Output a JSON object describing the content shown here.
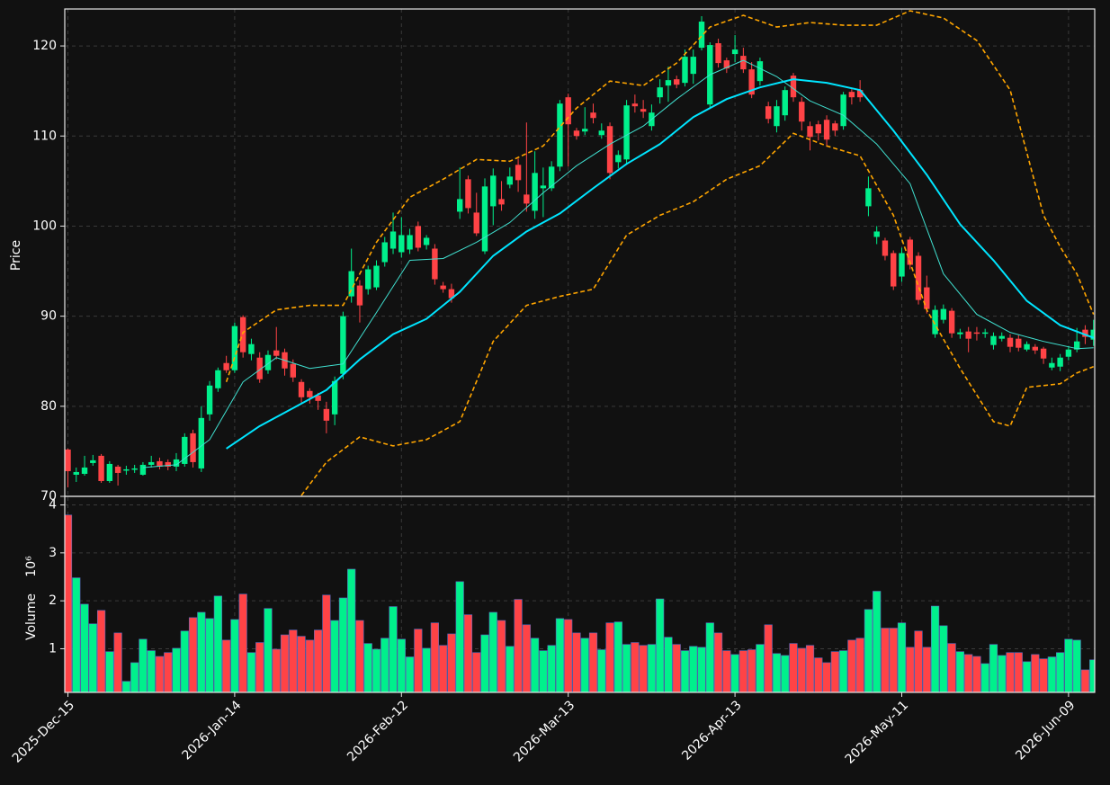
{
  "chart_data": {
    "type": "candlestick",
    "ylabel": "Price",
    "volume_label": "Volume",
    "volume_exponent": "10⁶",
    "up_color": "#00f08c",
    "down_color": "#ff4346",
    "grid": true,
    "ylim": [
      70,
      124.1
    ],
    "yticks": [
      70,
      80,
      90,
      100,
      110,
      120
    ],
    "volume_ylim": [
      0.09,
      4.16
    ],
    "volume_yticks": [
      1,
      2,
      3,
      4
    ],
    "categories": [
      "2025-Dec-15",
      null,
      null,
      null,
      null,
      null,
      null,
      null,
      null,
      null,
      null,
      null,
      null,
      null,
      null,
      null,
      null,
      null,
      null,
      null,
      "2026-Jan-14",
      null,
      null,
      null,
      null,
      null,
      null,
      null,
      null,
      null,
      null,
      null,
      null,
      null,
      null,
      null,
      null,
      null,
      null,
      null,
      "2026-Feb-12",
      null,
      null,
      null,
      null,
      null,
      null,
      null,
      null,
      null,
      null,
      null,
      null,
      null,
      null,
      null,
      null,
      null,
      null,
      null,
      "2026-Mar-13",
      null,
      null,
      null,
      null,
      null,
      null,
      null,
      null,
      null,
      null,
      null,
      null,
      null,
      null,
      null,
      null,
      null,
      null,
      null,
      "2026-Apr-13",
      null,
      null,
      null,
      null,
      null,
      null,
      null,
      null,
      null,
      null,
      null,
      null,
      null,
      null,
      null,
      null,
      null,
      null,
      null,
      "2026-May-11",
      null,
      null,
      null,
      null,
      null,
      null,
      null,
      null,
      null,
      null,
      null,
      null,
      null,
      null,
      null,
      null,
      null,
      null,
      null,
      "2026-Jun-09",
      null,
      null,
      null
    ],
    "open": [
      75.2,
      72.4,
      72.5,
      73.7,
      74.5,
      71.7,
      73.3,
      72.9,
      73.0,
      72.4,
      73.5,
      73.9,
      73.8,
      73.3,
      73.6,
      77.0,
      73.1,
      79.1,
      82.0,
      84.8,
      84.0,
      89.9,
      85.8,
      85.4,
      84.0,
      86.2,
      86.0,
      84.7,
      82.7,
      81.7,
      81.2,
      79.7,
      79.1,
      83.6,
      92.2,
      93.4,
      93.0,
      93.2,
      96.0,
      97.5,
      97.1,
      97.4,
      100.0,
      97.9,
      97.5,
      93.4,
      93.0,
      101.6,
      105.2,
      101.5,
      97.2,
      102.2,
      103.0,
      104.6,
      106.8,
      103.5,
      101.7,
      104.2,
      104.2,
      106.6,
      114.3,
      110.6,
      110.5,
      112.6,
      110.1,
      111.1,
      107.1,
      107.4,
      113.6,
      113.0,
      111.1,
      114.3,
      115.6,
      116.3,
      115.9,
      116.9,
      119.8,
      113.5,
      120.3,
      118.4,
      119.1,
      118.9,
      117.4,
      116.1,
      113.3,
      111.1,
      112.3,
      116.7,
      113.8,
      111.1,
      111.3,
      111.8,
      111.4,
      111.1,
      114.9,
      115.1,
      102.2,
      98.8,
      98.4,
      97.0,
      94.4,
      98.5,
      96.7,
      93.2,
      88.0,
      89.6,
      90.6,
      88.0,
      88.3,
      88.2,
      88.1,
      86.8,
      87.5,
      87.6,
      87.5,
      86.3,
      86.6,
      86.4,
      84.3,
      84.4,
      85.5,
      86.3,
      88.5,
      87.4
    ],
    "high": [
      75.3,
      73.2,
      74.5,
      74.6,
      74.7,
      73.9,
      73.5,
      73.4,
      73.5,
      73.8,
      74.5,
      74.3,
      74.1,
      74.8,
      77.0,
      77.4,
      80.0,
      82.8,
      84.3,
      85.6,
      89.3,
      90.1,
      87.5,
      86.0,
      86.2,
      88.8,
      86.4,
      85.2,
      83.0,
      82.0,
      81.5,
      80.5,
      83.3,
      90.5,
      97.5,
      94.0,
      95.6,
      96.2,
      98.8,
      101.5,
      101.0,
      99.7,
      100.5,
      99.0,
      98.0,
      93.8,
      93.6,
      106.5,
      105.6,
      103.7,
      105.3,
      106.4,
      105.0,
      106.5,
      107.5,
      111.5,
      108.3,
      106.5,
      107.2,
      114.0,
      114.7,
      110.9,
      113.2,
      113.6,
      111.4,
      111.5,
      108.4,
      114.0,
      114.6,
      114.0,
      113.5,
      116.3,
      117.7,
      116.7,
      119.6,
      119.6,
      123.3,
      120.4,
      120.8,
      118.7,
      121.2,
      119.8,
      118.2,
      118.7,
      113.8,
      114.0,
      115.5,
      117.0,
      114.3,
      111.6,
      111.7,
      112.3,
      111.7,
      114.9,
      115.2,
      116.2,
      105.5,
      100.0,
      98.7,
      97.3,
      97.6,
      98.8,
      97.1,
      94.5,
      91.2,
      91.3,
      90.9,
      88.6,
      88.8,
      88.8,
      88.6,
      88.2,
      88.2,
      88.0,
      87.9,
      87.2,
      86.9,
      86.6,
      85.4,
      85.8,
      86.7,
      88.7,
      89.0,
      89.6
    ],
    "low": [
      71.0,
      71.6,
      72.3,
      73.4,
      71.5,
      71.5,
      71.2,
      72.4,
      72.6,
      72.3,
      73.2,
      73.0,
      72.9,
      72.8,
      73.3,
      73.2,
      72.7,
      78.4,
      81.6,
      83.7,
      83.7,
      85.4,
      85.1,
      82.6,
      83.6,
      85.2,
      83.4,
      82.7,
      80.4,
      80.3,
      79.6,
      77.0,
      77.9,
      83.0,
      91.5,
      89.3,
      92.4,
      92.9,
      95.5,
      96.9,
      96.5,
      96.9,
      97.2,
      97.4,
      93.5,
      92.6,
      91.5,
      100.8,
      101.4,
      98.9,
      96.9,
      100.1,
      101.7,
      104.2,
      103.8,
      101.6,
      100.8,
      101.0,
      103.9,
      106.1,
      106.6,
      109.6,
      110.1,
      111.4,
      109.7,
      105.2,
      106.4,
      106.8,
      112.6,
      112.0,
      110.6,
      113.6,
      113.8,
      115.3,
      115.5,
      115.8,
      119.5,
      113.0,
      117.6,
      117.0,
      118.2,
      117.0,
      114.2,
      115.6,
      111.4,
      110.4,
      111.7,
      113.8,
      110.6,
      108.4,
      109.5,
      108.8,
      110.0,
      110.7,
      113.5,
      113.8,
      101.1,
      98.0,
      96.2,
      92.9,
      93.8,
      95.2,
      91.3,
      90.3,
      87.6,
      89.2,
      87.6,
      87.5,
      86.0,
      87.3,
      87.6,
      86.3,
      87.2,
      86.0,
      86.1,
      86.1,
      85.8,
      84.7,
      84.0,
      83.9,
      85.1,
      86.0,
      86.9,
      86.7
    ],
    "close": [
      72.8,
      72.7,
      73.2,
      74.0,
      71.7,
      73.6,
      72.6,
      73.0,
      73.1,
      73.5,
      73.8,
      73.3,
      73.3,
      74.1,
      76.6,
      73.8,
      78.7,
      82.3,
      84.0,
      84.0,
      88.9,
      86.0,
      86.9,
      83.0,
      85.7,
      85.6,
      84.2,
      83.2,
      81.0,
      81.0,
      80.6,
      78.4,
      82.8,
      90.0,
      95.0,
      91.2,
      95.2,
      95.6,
      98.2,
      99.4,
      99.0,
      99.0,
      97.6,
      98.7,
      94.1,
      93.0,
      92.0,
      103.0,
      102.0,
      99.2,
      104.4,
      105.6,
      102.4,
      105.5,
      105.1,
      102.5,
      105.9,
      104.5,
      106.6,
      113.6,
      111.3,
      110.0,
      110.8,
      112.0,
      110.6,
      105.9,
      107.9,
      113.4,
      113.3,
      112.7,
      112.6,
      115.4,
      116.2,
      115.7,
      118.8,
      118.8,
      122.7,
      120.1,
      118.1,
      117.5,
      119.6,
      117.4,
      114.6,
      118.3,
      111.9,
      113.3,
      115.1,
      114.3,
      111.6,
      109.9,
      110.3,
      109.6,
      110.6,
      114.6,
      114.3,
      114.3,
      104.2,
      99.4,
      96.7,
      93.3,
      97.0,
      95.7,
      91.8,
      90.8,
      90.7,
      90.8,
      88.1,
      88.2,
      87.5,
      88.1,
      88.2,
      87.8,
      87.8,
      86.6,
      86.5,
      86.9,
      86.2,
      85.3,
      84.8,
      85.4,
      86.3,
      87.2,
      87.7,
      88.5
    ],
    "volume": [
      3.79,
      2.48,
      1.93,
      1.52,
      1.8,
      0.94,
      1.33,
      0.32,
      0.71,
      1.2,
      0.96,
      0.84,
      0.92,
      1.01,
      1.37,
      1.65,
      1.76,
      1.63,
      2.1,
      1.18,
      1.61,
      2.14,
      0.92,
      1.13,
      1.84,
      0.99,
      1.29,
      1.39,
      1.26,
      1.18,
      1.39,
      2.12,
      1.59,
      2.06,
      2.66,
      1.59,
      1.11,
      0.99,
      1.22,
      1.88,
      1.2,
      0.83,
      1.41,
      1.01,
      1.54,
      1.07,
      1.31,
      2.4,
      1.71,
      0.92,
      1.29,
      1.76,
      1.59,
      1.05,
      2.03,
      1.5,
      1.22,
      0.96,
      1.07,
      1.63,
      1.61,
      1.33,
      1.22,
      1.33,
      0.98,
      1.54,
      1.56,
      1.09,
      1.13,
      1.07,
      1.09,
      2.04,
      1.24,
      1.09,
      0.96,
      1.05,
      1.03,
      1.54,
      1.33,
      0.96,
      0.88,
      0.96,
      0.98,
      1.09,
      1.5,
      0.9,
      0.86,
      1.11,
      1.01,
      1.07,
      0.81,
      0.71,
      0.94,
      0.96,
      1.18,
      1.22,
      1.82,
      2.2,
      1.43,
      1.43,
      1.54,
      1.03,
      1.37,
      1.03,
      1.89,
      1.48,
      1.11,
      0.94,
      0.88,
      0.84,
      0.69,
      1.09,
      0.86,
      0.92,
      0.92,
      0.73,
      0.88,
      0.79,
      0.83,
      0.92,
      1.2,
      1.18,
      0.56,
      0.77
    ],
    "lines": [
      {
        "color": "#40e0d0",
        "width": 1,
        "dashed": false,
        "x": [
          9,
          13,
          17,
          21,
          25,
          29,
          33,
          37,
          41,
          45,
          49,
          53,
          57,
          61,
          65,
          69,
          73,
          77,
          81,
          85,
          89,
          93,
          97,
          101,
          105,
          109,
          113,
          117,
          121,
          123
        ],
        "values": [
          73.2,
          73.5,
          76.3,
          82.7,
          85.4,
          84.2,
          84.7,
          90.4,
          96.2,
          96.4,
          98.2,
          100.4,
          103.7,
          106.7,
          109.1,
          111.1,
          114.1,
          116.8,
          118.4,
          116.6,
          113.9,
          112.3,
          109.1,
          104.7,
          94.7,
          90.2,
          88.2,
          87.2,
          86.4,
          86.5
        ]
      },
      {
        "color": "#00e5ff",
        "width": 2,
        "dashed": false,
        "x": [
          19,
          23,
          27,
          31,
          35,
          39,
          43,
          47,
          51,
          55,
          59,
          63,
          67,
          71,
          75,
          79,
          83,
          87,
          91,
          95,
          99,
          103,
          107,
          111,
          115,
          119,
          123
        ],
        "values": [
          75.3,
          77.8,
          79.8,
          81.8,
          85.2,
          88.0,
          89.7,
          92.7,
          96.7,
          99.4,
          101.4,
          104.2,
          106.9,
          109.1,
          112.1,
          114.1,
          115.4,
          116.3,
          115.9,
          115.1,
          110.6,
          105.7,
          100.2,
          96.2,
          91.7,
          89.0,
          87.6
        ]
      },
      {
        "color": "#ffa500",
        "width": 1.6,
        "dashed": true,
        "x": [
          19,
          21,
          25,
          29,
          33,
          37,
          41,
          45,
          49,
          53,
          57,
          61,
          65,
          69,
          73,
          77,
          81,
          85,
          89,
          93,
          97,
          101,
          105,
          109,
          113,
          117,
          119,
          121,
          123
        ],
        "values": [
          82.7,
          88.2,
          90.7,
          91.2,
          91.2,
          98.2,
          103.2,
          105.2,
          107.4,
          107.2,
          108.9,
          113.1,
          116.1,
          115.6,
          118.1,
          122.1,
          123.4,
          122.1,
          122.6,
          122.3,
          122.3,
          123.9,
          123.1,
          120.6,
          115.1,
          101.2,
          97.7,
          94.7,
          90.2
        ]
      },
      {
        "color": "#ffa500",
        "width": 1.6,
        "dashed": true,
        "x": [
          28,
          31,
          35,
          39,
          43,
          47,
          51,
          55,
          59,
          63,
          67,
          71,
          75,
          79,
          83,
          87,
          91,
          95,
          99,
          103,
          107,
          111,
          113,
          115,
          119,
          121,
          123
        ],
        "values": [
          70.1,
          73.8,
          76.6,
          75.6,
          76.3,
          78.3,
          87.2,
          91.2,
          92.2,
          93.0,
          99.0,
          101.2,
          102.7,
          105.2,
          106.7,
          110.3,
          108.9,
          107.8,
          101.2,
          90.7,
          84.2,
          78.3,
          77.8,
          82.1,
          82.5,
          83.7,
          84.4
        ]
      }
    ]
  }
}
